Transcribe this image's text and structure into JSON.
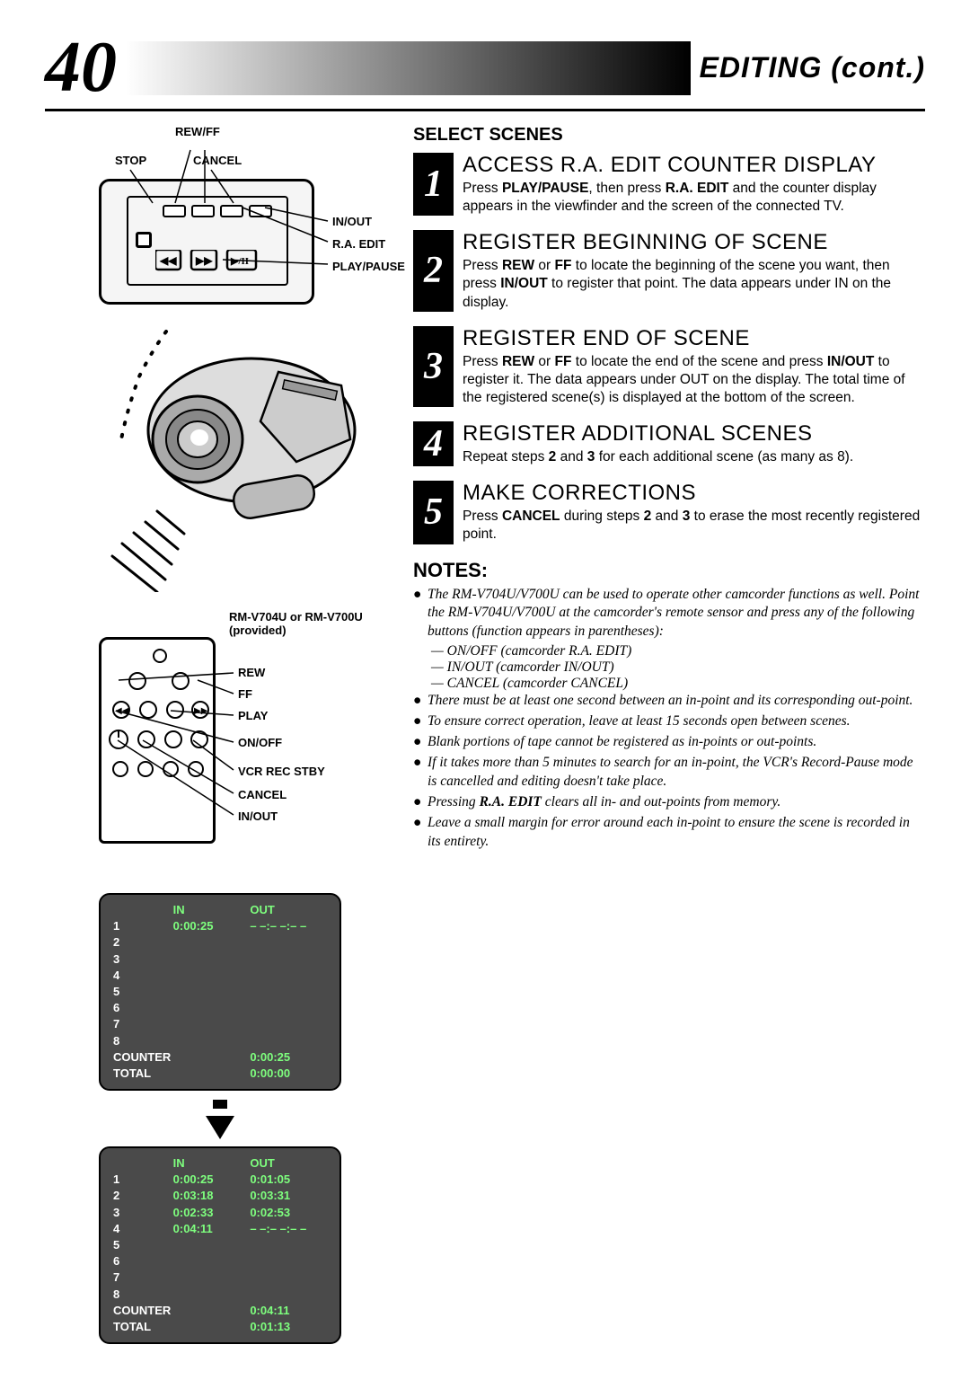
{
  "page_number": "40",
  "header_title": "EDITING (cont.)",
  "lcd_labels": {
    "rewff": "REW/FF",
    "stop": "STOP",
    "cancel": "CANCEL",
    "inout": "IN/OUT",
    "raedit": "R.A. EDIT",
    "playpause": "PLAY/PAUSE"
  },
  "remote_labels": {
    "model": "RM-V704U or RM-V700U (provided)",
    "rew": "REW",
    "ff": "FF",
    "play": "PLAY",
    "onoff": "ON/OFF",
    "vcr": "VCR REC STBY",
    "cancel": "CANCEL",
    "inout": "IN/OUT"
  },
  "table1": {
    "in_header": "IN",
    "out_header": "OUT",
    "rows": [
      "1",
      "2",
      "3",
      "4",
      "5",
      "6",
      "7",
      "8"
    ],
    "in_vals": [
      "0:00:25",
      "",
      "",
      "",
      "",
      "",
      "",
      ""
    ],
    "out_vals": [
      "– –:– –:– –",
      "",
      "",
      "",
      "",
      "",
      "",
      ""
    ],
    "counter_label": "COUNTER",
    "counter_val": "0:00:25",
    "total_label": "TOTAL",
    "total_val": "0:00:00"
  },
  "table2": {
    "in_header": "IN",
    "out_header": "OUT",
    "rows": [
      "1",
      "2",
      "3",
      "4",
      "5",
      "6",
      "7",
      "8"
    ],
    "in_vals": [
      "0:00:25",
      "0:03:18",
      "0:02:33",
      "0:04:11",
      "",
      "",
      "",
      ""
    ],
    "out_vals": [
      "0:01:05",
      "0:03:31",
      "0:02:53",
      "– –:– –:– –",
      "",
      "",
      "",
      ""
    ],
    "counter_label": "COUNTER",
    "counter_val": "0:04:11",
    "total_label": "TOTAL",
    "total_val": "0:01:13"
  },
  "section_title": "SELECT SCENES",
  "steps": [
    {
      "num": "1",
      "title": "ACCESS R.A. EDIT COUNTER DISPLAY",
      "text": "Press <b>PLAY/PAUSE</b>, then press <b>R.A. EDIT</b> and the counter display appears in the viewfinder and the screen of the connected TV."
    },
    {
      "num": "2",
      "title": "REGISTER BEGINNING OF SCENE",
      "text": "Press <b>REW</b> or <b>FF</b> to locate the beginning of the scene you want, then press <b>IN/OUT</b> to register that point. The data appears under IN on the display."
    },
    {
      "num": "3",
      "title": "REGISTER END OF SCENE",
      "text": "Press <b>REW</b> or <b>FF</b> to locate the end of the scene and press <b>IN/OUT</b> to register it. The data appears under OUT on the display. The total time of the registered scene(s) is displayed at the bottom of the screen."
    },
    {
      "num": "4",
      "title": "REGISTER ADDITIONAL SCENES",
      "text": "Repeat steps <b>2</b> and <b>3</b> for each additional scene (as many as 8)."
    },
    {
      "num": "5",
      "title": "MAKE CORRECTIONS",
      "text": "Press <b>CANCEL</b> during steps <b>2</b> and <b>3</b> to erase the most recently registered point."
    }
  ],
  "notes_title": "NOTES:",
  "notes": [
    "The RM-V704U/V700U can be used to operate other camcorder functions as well. Point the RM-V704U/V700U at the camcorder's remote sensor and press any of the following buttons (function appears in parentheses):",
    "There must be at least one second between an in-point and its corresponding out-point.",
    "To ensure correct operation, leave at least 15 seconds open between scenes.",
    "Blank portions of tape cannot be registered as in-points or out-points.",
    "If it takes more than 5 minutes to search for an in-point, the VCR's Record-Pause mode is cancelled and editing doesn't take place.",
    "Pressing <b>R.A. EDIT</b> clears all in- and out-points from memory.",
    "Leave a small margin for error around each in-point to ensure the scene is recorded in its entirety."
  ],
  "notes_sub": [
    "— ON/OFF (camcorder R.A. EDIT)",
    "— IN/OUT (camcorder IN/OUT)",
    "— CANCEL (camcorder CANCEL)"
  ]
}
